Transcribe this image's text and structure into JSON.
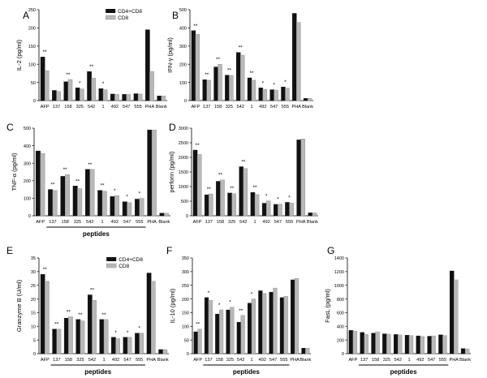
{
  "figure": {
    "colors": {
      "cd4cd8": "#111111",
      "cd8": "#b8b8b8",
      "axis": "#000000"
    },
    "legend": {
      "cd4cd8": "CD4+CD8",
      "cd8": "CD8"
    }
  },
  "chart_data": [
    {
      "panel": "A",
      "type": "bar",
      "ylabel": "IL-2 (pg/ml)",
      "categories": [
        "AFP",
        "137",
        "158",
        "325",
        "542",
        "1",
        "492",
        "547",
        "555",
        "PHA",
        "Blank"
      ],
      "ylim": [
        0,
        250
      ],
      "yticks": [
        0,
        50,
        100,
        150,
        200,
        250
      ],
      "series": [
        {
          "name": "CD4+CD8",
          "values": [
            120,
            28,
            52,
            35,
            80,
            33,
            18,
            17,
            19,
            195,
            13
          ]
        },
        {
          "name": "CD8",
          "values": [
            82,
            25,
            58,
            32,
            62,
            30,
            17,
            17,
            18,
            80,
            13
          ]
        }
      ],
      "significance": [
        "**",
        "",
        "**",
        "*",
        "**",
        "*",
        "",
        "",
        "",
        "",
        ""
      ],
      "legend": "top-right",
      "xlabel": ""
    },
    {
      "panel": "B",
      "type": "bar",
      "ylabel": "IFN-γ (pg/ml)",
      "categories": [
        "AFP",
        "137",
        "158",
        "325",
        "542",
        "1",
        "492",
        "547",
        "555",
        "PHA",
        "Blank"
      ],
      "ylim": [
        0,
        500
      ],
      "yticks": [
        0,
        100,
        200,
        300,
        400,
        500
      ],
      "series": [
        {
          "name": "CD4+CD8",
          "values": [
            385,
            115,
            185,
            140,
            265,
            125,
            70,
            60,
            75,
            480,
            12
          ]
        },
        {
          "name": "CD8",
          "values": [
            365,
            112,
            200,
            138,
            250,
            112,
            62,
            58,
            68,
            430,
            12
          ]
        }
      ],
      "significance": [
        "**",
        "**",
        "**",
        "**",
        "**",
        "**",
        "*",
        "*",
        "*",
        "",
        ""
      ],
      "xlabel": ""
    },
    {
      "panel": "C",
      "type": "bar",
      "ylabel": "TNF-α (pg/ml)",
      "categories": [
        "AFP",
        "137",
        "158",
        "325",
        "542",
        "1",
        "492",
        "547",
        "555",
        "PHA",
        "Blank"
      ],
      "ylim": [
        0,
        500
      ],
      "yticks": [
        0,
        100,
        200,
        300,
        400,
        500
      ],
      "series": [
        {
          "name": "CD4+CD8",
          "values": [
            370,
            150,
            225,
            170,
            265,
            145,
            110,
            80,
            95,
            490,
            15
          ]
        },
        {
          "name": "CD8",
          "values": [
            355,
            145,
            235,
            155,
            265,
            140,
            115,
            75,
            100,
            490,
            15
          ]
        }
      ],
      "significance": [
        "",
        "**",
        "**",
        "**",
        "**",
        "**",
        "*",
        "*",
        "*",
        "",
        ""
      ],
      "xlabel": "peptides"
    },
    {
      "panel": "D",
      "type": "bar",
      "ylabel": "perforin (pg/ml)",
      "categories": [
        "AFP",
        "137",
        "158",
        "325",
        "542",
        "1",
        "492",
        "547",
        "555",
        "PHA",
        "Blank"
      ],
      "ylim": [
        0,
        3000
      ],
      "yticks": [
        0,
        500,
        1000,
        1500,
        2000,
        2500,
        3000
      ],
      "series": [
        {
          "name": "CD4+CD8",
          "values": [
            2250,
            720,
            1180,
            780,
            1680,
            800,
            430,
            390,
            460,
            2600,
            100
          ]
        },
        {
          "name": "CD8",
          "values": [
            2100,
            750,
            1230,
            760,
            1620,
            730,
            510,
            400,
            440,
            2630,
            100
          ]
        }
      ],
      "significance": [
        "**",
        "**",
        "**",
        "**",
        "**",
        "**",
        "*",
        "*",
        "*",
        "",
        ""
      ],
      "xlabel": ""
    },
    {
      "panel": "E",
      "type": "bar",
      "ylabel": "Granzyme B (U/ml)",
      "categories": [
        "AFP",
        "137",
        "158",
        "325",
        "542",
        "1",
        "492",
        "547",
        "555",
        "PHA",
        "Blank"
      ],
      "ylim": [
        0,
        35
      ],
      "yticks": [
        0,
        5,
        10,
        15,
        20,
        25,
        30,
        35
      ],
      "series": [
        {
          "name": "CD4+CD8",
          "values": [
            29,
            9,
            13,
            12.5,
            21.5,
            12.5,
            6,
            6,
            7.5,
            29.5,
            1.5
          ]
        },
        {
          "name": "CD8",
          "values": [
            26.5,
            9,
            13.5,
            12,
            19.5,
            12.5,
            5.5,
            6,
            7.5,
            26.5,
            1.5
          ]
        }
      ],
      "significance": [
        "**",
        "**",
        "**",
        "**",
        "**",
        "**",
        "*",
        "*",
        "*",
        "",
        ""
      ],
      "legend": "top-right",
      "xlabel": "peptides"
    },
    {
      "panel": "F",
      "type": "bar",
      "ylabel": "IL-10 (pg/ml)",
      "categories": [
        "AFP",
        "137",
        "158",
        "325",
        "542",
        "1",
        "492",
        "547",
        "555",
        "PHA",
        "Blank"
      ],
      "ylim": [
        0,
        350
      ],
      "yticks": [
        0,
        50,
        100,
        150,
        200,
        250,
        300,
        350
      ],
      "series": [
        {
          "name": "CD4+CD8",
          "values": [
            80,
            205,
            145,
            160,
            115,
            185,
            230,
            225,
            205,
            270,
            20
          ]
        },
        {
          "name": "CD8",
          "values": [
            90,
            195,
            160,
            170,
            140,
            200,
            220,
            240,
            210,
            275,
            20
          ]
        }
      ],
      "significance": [
        "**",
        "*",
        "*",
        "*",
        "**",
        "*",
        "",
        "",
        "",
        "",
        ""
      ],
      "xlabel": "peptides"
    },
    {
      "panel": "G",
      "type": "bar",
      "ylabel": "FasL (pg/ml)",
      "categories": [
        "AFP",
        "137",
        "158",
        "325",
        "542",
        "1",
        "492",
        "547",
        "555",
        "PHA",
        "Blank"
      ],
      "ylim": [
        0,
        1400
      ],
      "yticks": [
        0,
        200,
        400,
        600,
        800,
        1000,
        1200,
        1400
      ],
      "series": [
        {
          "name": "CD4+CD8",
          "values": [
            340,
            310,
            300,
            290,
            280,
            270,
            260,
            255,
            275,
            1210,
            75
          ]
        },
        {
          "name": "CD8",
          "values": [
            330,
            280,
            320,
            285,
            275,
            265,
            250,
            260,
            265,
            1080,
            70
          ]
        }
      ],
      "significance": [
        "",
        "",
        "",
        "",
        "",
        "",
        "",
        "",
        "",
        "",
        ""
      ],
      "xlabel": "peptides"
    }
  ]
}
